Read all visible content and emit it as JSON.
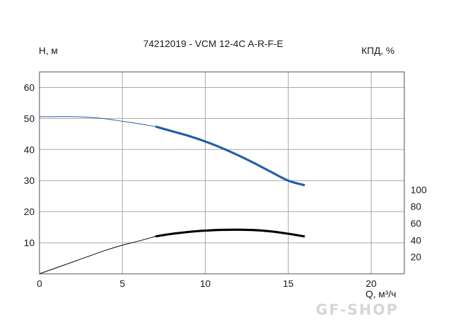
{
  "chart_data": {
    "type": "line",
    "title": "74212019 - VCM 12-4C A-R-F-E",
    "xlabel": "Q, м³/ч",
    "ylabel": "Н, м",
    "y2label": "КПД, %",
    "xlim": [
      0,
      22
    ],
    "ylim": [
      0,
      65
    ],
    "y2lim": [
      0,
      240
    ],
    "x_ticks": [
      0,
      5,
      10,
      15,
      20
    ],
    "y_ticks": [
      10,
      20,
      30,
      40,
      50,
      60
    ],
    "y2_ticks": [
      20,
      40,
      60,
      80,
      100
    ],
    "grid": true,
    "series": [
      {
        "axis": "left",
        "color": "#1f5fa8",
        "points": [
          [
            0,
            50.6
          ],
          [
            1,
            50.6
          ],
          [
            2,
            50.6
          ],
          [
            3,
            50.4
          ],
          [
            4,
            49.9
          ],
          [
            5,
            49.1
          ],
          [
            6,
            48.3
          ],
          [
            7,
            47.4
          ]
        ]
      },
      {
        "axis": "left",
        "color": "#1f5fa8",
        "points": [
          [
            7,
            47.4
          ],
          [
            8,
            45.9
          ],
          [
            9,
            44.4
          ],
          [
            10,
            42.6
          ],
          [
            11,
            40.5
          ],
          [
            12,
            38.1
          ],
          [
            13,
            35.5
          ],
          [
            14,
            32.7
          ],
          [
            15,
            30.0
          ],
          [
            16,
            28.5
          ]
        ]
      },
      {
        "axis": "right",
        "color": "#000000",
        "points": [
          [
            0,
            0
          ],
          [
            1,
            7
          ],
          [
            2,
            14
          ],
          [
            3,
            21
          ],
          [
            4,
            28
          ],
          [
            5,
            34
          ],
          [
            6,
            39
          ],
          [
            7,
            44.5
          ]
        ]
      },
      {
        "axis": "right",
        "color": "#000000",
        "points": [
          [
            7,
            44.5
          ],
          [
            8,
            47.5
          ],
          [
            9,
            49.8
          ],
          [
            10,
            51.3
          ],
          [
            11,
            52.2
          ],
          [
            12,
            52.4
          ],
          [
            13,
            51.9
          ],
          [
            14,
            50.3
          ],
          [
            15,
            47.6
          ],
          [
            16,
            44.3
          ]
        ]
      }
    ]
  },
  "watermark": "GF-SHOP"
}
